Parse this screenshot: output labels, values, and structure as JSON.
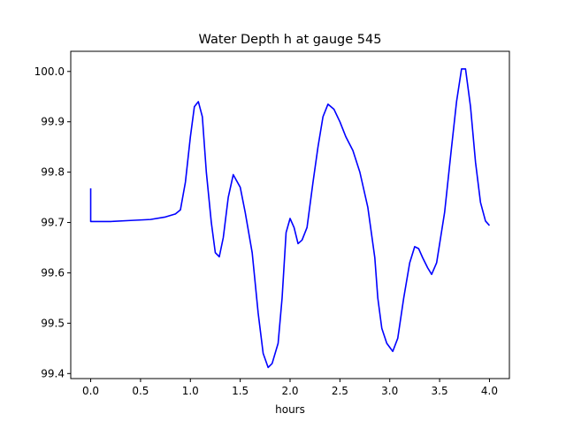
{
  "chart_data": {
    "type": "line",
    "title": "Water Depth h at gauge 545",
    "xlabel": "hours",
    "ylabel": "",
    "xlim": [
      -0.2,
      4.2
    ],
    "ylim": [
      99.39,
      100.04
    ],
    "grid": false,
    "colors": {
      "line": "#0000ff",
      "axes": "#000000",
      "background": "#ffffff"
    },
    "xticks": [
      0.0,
      0.5,
      1.0,
      1.5,
      2.0,
      2.5,
      3.0,
      3.5,
      4.0
    ],
    "xtick_labels": [
      "0.0",
      "0.5",
      "1.0",
      "1.5",
      "2.0",
      "2.5",
      "3.0",
      "3.5",
      "4.0"
    ],
    "yticks": [
      99.4,
      99.5,
      99.6,
      99.7,
      99.8,
      99.9,
      100.0
    ],
    "ytick_labels": [
      "99.4",
      "99.5",
      "99.6",
      "99.7",
      "99.8",
      "99.9",
      "100.0"
    ],
    "series": [
      {
        "points": [
          [
            0.0,
            99.768
          ],
          [
            0.0,
            99.702
          ],
          [
            0.1,
            99.702
          ],
          [
            0.2,
            99.702
          ],
          [
            0.4,
            99.704
          ],
          [
            0.6,
            99.706
          ],
          [
            0.75,
            99.711
          ],
          [
            0.85,
            99.717
          ],
          [
            0.9,
            99.725
          ],
          [
            0.95,
            99.78
          ],
          [
            1.0,
            99.87
          ],
          [
            1.04,
            99.93
          ],
          [
            1.08,
            99.94
          ],
          [
            1.12,
            99.91
          ],
          [
            1.16,
            99.8
          ],
          [
            1.21,
            99.7
          ],
          [
            1.25,
            99.64
          ],
          [
            1.29,
            99.632
          ],
          [
            1.33,
            99.67
          ],
          [
            1.38,
            99.75
          ],
          [
            1.43,
            99.795
          ],
          [
            1.5,
            99.77
          ],
          [
            1.55,
            99.72
          ],
          [
            1.62,
            99.64
          ],
          [
            1.68,
            99.52
          ],
          [
            1.73,
            99.44
          ],
          [
            1.78,
            99.412
          ],
          [
            1.82,
            99.42
          ],
          [
            1.88,
            99.46
          ],
          [
            1.92,
            99.55
          ],
          [
            1.96,
            99.68
          ],
          [
            2.0,
            99.708
          ],
          [
            2.04,
            99.69
          ],
          [
            2.08,
            99.658
          ],
          [
            2.12,
            99.665
          ],
          [
            2.17,
            99.69
          ],
          [
            2.23,
            99.78
          ],
          [
            2.28,
            99.85
          ],
          [
            2.33,
            99.91
          ],
          [
            2.38,
            99.935
          ],
          [
            2.44,
            99.925
          ],
          [
            2.5,
            99.9
          ],
          [
            2.56,
            99.87
          ],
          [
            2.63,
            99.843
          ],
          [
            2.7,
            99.8
          ],
          [
            2.78,
            99.73
          ],
          [
            2.85,
            99.63
          ],
          [
            2.88,
            99.55
          ],
          [
            2.92,
            99.49
          ],
          [
            2.97,
            99.46
          ],
          [
            3.03,
            99.444
          ],
          [
            3.08,
            99.47
          ],
          [
            3.14,
            99.55
          ],
          [
            3.2,
            99.62
          ],
          [
            3.25,
            99.652
          ],
          [
            3.29,
            99.648
          ],
          [
            3.33,
            99.63
          ],
          [
            3.38,
            99.61
          ],
          [
            3.42,
            99.597
          ],
          [
            3.47,
            99.62
          ],
          [
            3.55,
            99.72
          ],
          [
            3.62,
            99.85
          ],
          [
            3.67,
            99.94
          ],
          [
            3.72,
            100.005
          ],
          [
            3.76,
            100.005
          ],
          [
            3.81,
            99.93
          ],
          [
            3.86,
            99.82
          ],
          [
            3.91,
            99.74
          ],
          [
            3.96,
            99.703
          ],
          [
            4.0,
            99.694
          ]
        ]
      }
    ]
  }
}
